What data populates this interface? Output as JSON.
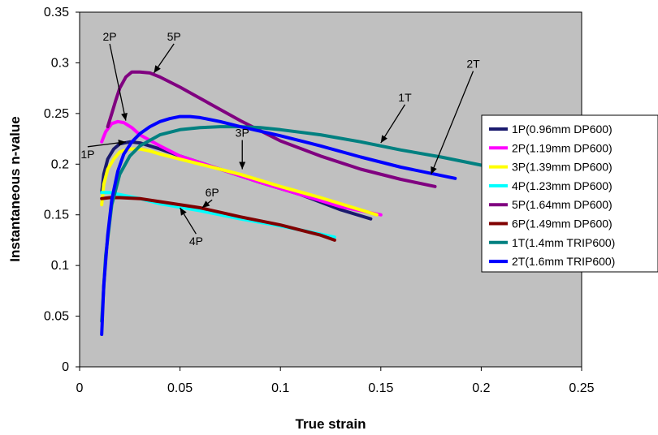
{
  "chart_data": {
    "type": "line",
    "title": "",
    "xlabel": "True strain",
    "ylabel": "Instantaneous n-value",
    "xlim": [
      0,
      0.25
    ],
    "ylim": [
      0,
      0.35
    ],
    "xticks": [
      "0",
      "0.05",
      "0.1",
      "0.15",
      "0.2",
      "0.25"
    ],
    "yticks": [
      "0",
      "0.05",
      "0.1",
      "0.15",
      "0.2",
      "0.25",
      "0.3",
      "0.35"
    ],
    "plot_background": "#c0c0c0",
    "grid": false,
    "legend_position": "right",
    "series": [
      {
        "name": "1P(0.96mm DP600)",
        "color": "#1a1a6e",
        "x": [
          0.011,
          0.012,
          0.014,
          0.017,
          0.02,
          0.025,
          0.03,
          0.04,
          0.05,
          0.07,
          0.09,
          0.11,
          0.13,
          0.145
        ],
        "y": [
          0.172,
          0.19,
          0.205,
          0.215,
          0.22,
          0.222,
          0.221,
          0.215,
          0.208,
          0.195,
          0.182,
          0.17,
          0.155,
          0.146
        ]
      },
      {
        "name": "2P(1.19mm DP600)",
        "color": "#ff00ff",
        "x": [
          0.011,
          0.013,
          0.016,
          0.019,
          0.022,
          0.026,
          0.03,
          0.04,
          0.05,
          0.07,
          0.09,
          0.11,
          0.13,
          0.15
        ],
        "y": [
          0.222,
          0.232,
          0.24,
          0.242,
          0.241,
          0.236,
          0.229,
          0.218,
          0.208,
          0.195,
          0.182,
          0.17,
          0.158,
          0.15
        ]
      },
      {
        "name": "3P(1.39mm DP600)",
        "color": "#ffff00",
        "x": [
          0.011,
          0.012,
          0.014,
          0.017,
          0.02,
          0.025,
          0.03,
          0.035,
          0.04,
          0.06,
          0.08,
          0.1,
          0.12,
          0.148
        ],
        "y": [
          0.16,
          0.18,
          0.195,
          0.205,
          0.212,
          0.215,
          0.215,
          0.213,
          0.21,
          0.2,
          0.19,
          0.178,
          0.167,
          0.15
        ]
      },
      {
        "name": "4P(1.23mm DP600)",
        "color": "#00ffff",
        "x": [
          0.011,
          0.015,
          0.02,
          0.03,
          0.04,
          0.06,
          0.08,
          0.1,
          0.12,
          0.127
        ],
        "y": [
          0.172,
          0.172,
          0.17,
          0.166,
          0.161,
          0.154,
          0.146,
          0.139,
          0.131,
          0.128
        ]
      },
      {
        "name": "5P(1.64mm DP600)",
        "color": "#800080",
        "x": [
          0.014,
          0.016,
          0.018,
          0.02,
          0.023,
          0.026,
          0.03,
          0.035,
          0.04,
          0.05,
          0.06,
          0.07,
          0.08,
          0.09,
          0.1,
          0.12,
          0.14,
          0.16,
          0.177
        ],
        "y": [
          0.237,
          0.25,
          0.263,
          0.275,
          0.286,
          0.291,
          0.291,
          0.29,
          0.286,
          0.276,
          0.265,
          0.254,
          0.243,
          0.233,
          0.223,
          0.208,
          0.195,
          0.185,
          0.178
        ]
      },
      {
        "name": "6P(1.49mm DP600)",
        "color": "#800000",
        "x": [
          0.011,
          0.015,
          0.02,
          0.03,
          0.04,
          0.06,
          0.08,
          0.1,
          0.12,
          0.127
        ],
        "y": [
          0.166,
          0.167,
          0.167,
          0.166,
          0.163,
          0.157,
          0.148,
          0.14,
          0.13,
          0.125
        ]
      },
      {
        "name": "1T(1.4mm TRIP600)",
        "color": "#008080",
        "x": [
          0.011,
          0.013,
          0.016,
          0.02,
          0.025,
          0.03,
          0.04,
          0.05,
          0.06,
          0.07,
          0.08,
          0.09,
          0.1,
          0.12,
          0.14,
          0.16,
          0.18,
          0.2
        ],
        "y": [
          0.045,
          0.11,
          0.16,
          0.19,
          0.208,
          0.218,
          0.229,
          0.234,
          0.236,
          0.237,
          0.237,
          0.236,
          0.234,
          0.229,
          0.222,
          0.214,
          0.207,
          0.199
        ]
      },
      {
        "name": "2T(1.6mm TRIP600)",
        "color": "#0000ff",
        "x": [
          0.011,
          0.012,
          0.014,
          0.016,
          0.019,
          0.022,
          0.026,
          0.03,
          0.035,
          0.04,
          0.045,
          0.05,
          0.055,
          0.06,
          0.07,
          0.08,
          0.1,
          0.12,
          0.14,
          0.16,
          0.187
        ],
        "y": [
          0.032,
          0.08,
          0.13,
          0.165,
          0.193,
          0.21,
          0.222,
          0.23,
          0.237,
          0.242,
          0.245,
          0.247,
          0.247,
          0.246,
          0.242,
          0.237,
          0.228,
          0.218,
          0.207,
          0.197,
          0.186
        ]
      }
    ],
    "annotations": [
      {
        "text": "2P",
        "tx": 0.015,
        "ty": 0.322,
        "ax": 0.023,
        "ay": 0.243
      },
      {
        "text": "5P",
        "tx": 0.047,
        "ty": 0.322,
        "ax": 0.037,
        "ay": 0.29
      },
      {
        "text": "1P",
        "tx": 0.004,
        "ty": 0.206,
        "ax": 0.023,
        "ay": 0.222
      },
      {
        "text": "3P",
        "tx": 0.081,
        "ty": 0.227,
        "ax": 0.081,
        "ay": 0.195
      },
      {
        "text": "6P",
        "tx": 0.066,
        "ty": 0.168,
        "ax": 0.061,
        "ay": 0.157
      },
      {
        "text": "4P",
        "tx": 0.058,
        "ty": 0.12,
        "ax": 0.05,
        "ay": 0.157
      },
      {
        "text": "1T",
        "tx": 0.162,
        "ty": 0.262,
        "ax": 0.15,
        "ay": 0.221
      },
      {
        "text": "2T",
        "tx": 0.196,
        "ty": 0.295,
        "ax": 0.175,
        "ay": 0.19
      }
    ]
  }
}
